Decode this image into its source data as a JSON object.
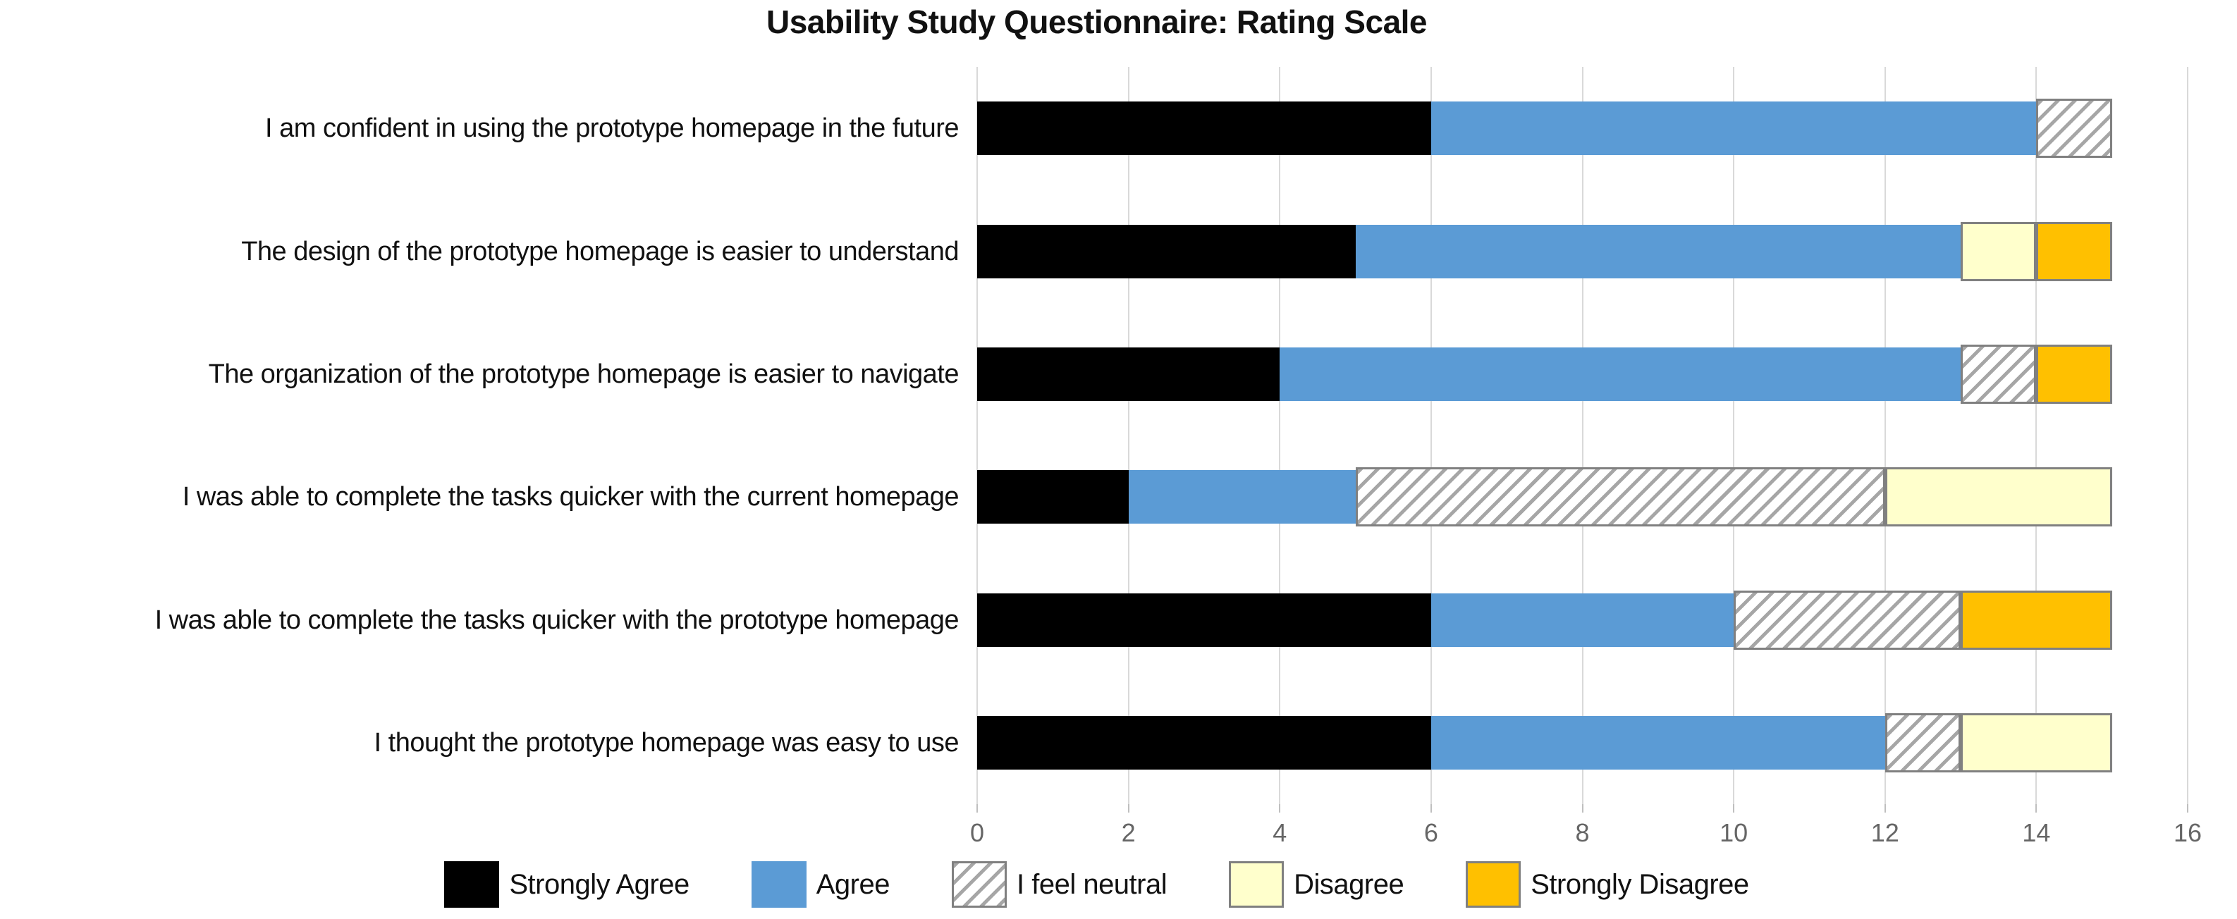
{
  "chart_data": {
    "type": "bar",
    "orientation": "horizontal",
    "stacked": true,
    "title": "Usability Study Questionnaire: Rating Scale",
    "categories": [
      "I am confident in using the prototype homepage in the future",
      "The design of the prototype homepage is easier to understand",
      "The organization of the prototype homepage is easier to navigate",
      "I was able to complete the tasks quicker with the current homepage",
      "I was able to complete the tasks quicker with the prototype homepage",
      "I thought the prototype homepage was easy to use"
    ],
    "series": [
      {
        "name": "Strongly Agree",
        "values": [
          6,
          5,
          4,
          2,
          6,
          6
        ],
        "fill": "#000000",
        "pattern": "solid",
        "border": false
      },
      {
        "name": "Agree",
        "values": [
          8,
          8,
          9,
          3,
          4,
          6
        ],
        "fill": "#5B9BD5",
        "pattern": "solid",
        "border": false
      },
      {
        "name": "I feel neutral",
        "values": [
          1,
          0,
          1,
          7,
          3,
          1
        ],
        "fill": "#FFFFFF",
        "pattern": "diagonal-hatch",
        "border": true
      },
      {
        "name": "Disagree",
        "values": [
          0,
          1,
          0,
          3,
          0,
          2
        ],
        "fill": "#FFFFCC",
        "pattern": "solid",
        "border": true
      },
      {
        "name": "Strongly Disagree",
        "values": [
          0,
          1,
          1,
          0,
          2,
          0
        ],
        "fill": "#FFC000",
        "pattern": "solid",
        "border": true
      }
    ],
    "row_totals": [
      15,
      15,
      15,
      15,
      15,
      15
    ],
    "xlim": [
      0,
      16
    ],
    "x_ticks": [
      0,
      2,
      4,
      6,
      8,
      10,
      12,
      14,
      16
    ],
    "grid": true,
    "legend_position": "bottom",
    "colors": {
      "gridline": "#D9D9D9",
      "axis_tick_text": "#666666",
      "hatch_stripe": "#A6A6A6",
      "hatch_background": "#FFFFFF",
      "segment_border": "#808080",
      "title_text": "#111111"
    }
  }
}
